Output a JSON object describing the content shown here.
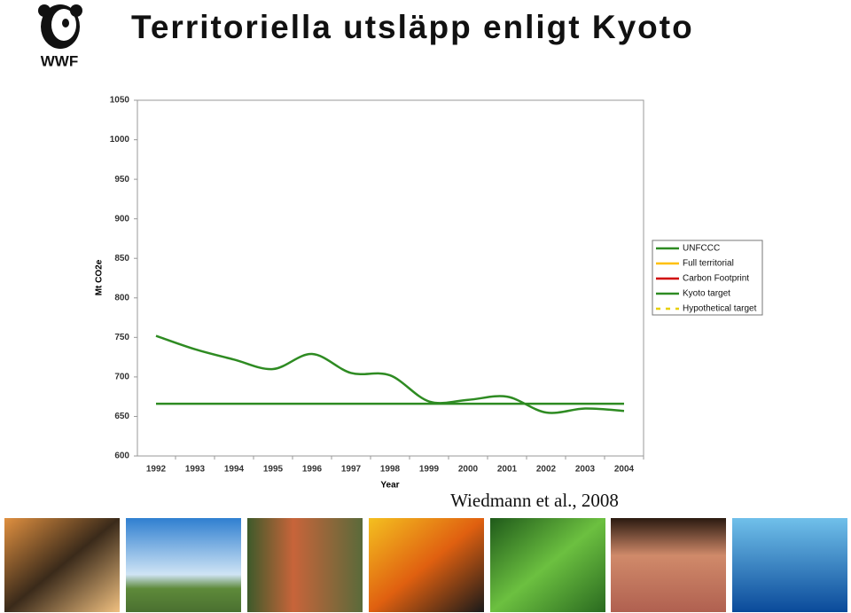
{
  "header": {
    "title": "Territoriella utsläpp enligt Kyoto",
    "logo_text": "WWF"
  },
  "chart_data": {
    "type": "line",
    "categories": [
      "1992",
      "1993",
      "1994",
      "1995",
      "1996",
      "1997",
      "1998",
      "1999",
      "2000",
      "2001",
      "2002",
      "2003",
      "2004"
    ],
    "series": [
      {
        "name": "UNFCCC",
        "color": "#2e8b22",
        "values": [
          752,
          735,
          722,
          710,
          729,
          705,
          702,
          669,
          671,
          675,
          655,
          660,
          657
        ]
      },
      {
        "name": "Full territorial",
        "color": "#ffc000",
        "values": [
          null,
          null,
          null,
          null,
          null,
          null,
          null,
          null,
          null,
          null,
          null,
          null,
          null
        ]
      },
      {
        "name": "Carbon Footprint",
        "color": "#d00000",
        "values": [
          null,
          null,
          null,
          null,
          null,
          null,
          null,
          null,
          null,
          null,
          null,
          null,
          null
        ]
      },
      {
        "name": "Kyoto target",
        "color": "#2e8b22",
        "values": [
          666,
          666,
          666,
          666,
          666,
          666,
          666,
          666,
          666,
          666,
          666,
          666,
          666
        ]
      },
      {
        "name": "Hypothetical target",
        "color": "#e8d000",
        "dashed": true,
        "values": [
          null,
          null,
          null,
          null,
          null,
          null,
          null,
          null,
          null,
          null,
          null,
          null,
          null
        ]
      }
    ],
    "ylim": [
      600,
      1050
    ],
    "yticks": [
      600,
      650,
      700,
      750,
      800,
      850,
      900,
      950,
      1000,
      1050
    ],
    "y_label": "Mt CO2e",
    "x_label": "Year",
    "grid": false,
    "legend": "right"
  },
  "citation": "Wiedmann et al., 2008"
}
